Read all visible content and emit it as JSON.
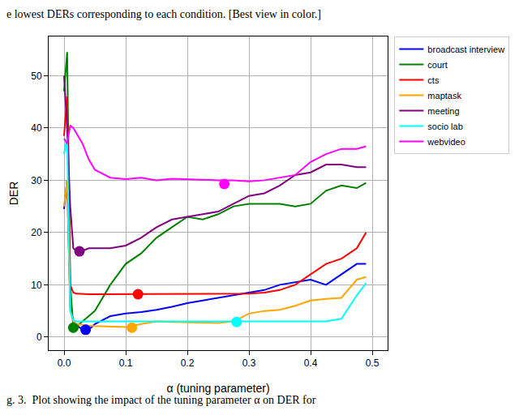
{
  "chart_data": {
    "type": "line",
    "x_label": "α (tuning parameter)",
    "y_label": "DER",
    "annotations": [
      "e lowest DERs corresponding to each condition. [Best view in color.]",
      "g. 3.  Plot showing the impact of the tuning parameter α on DER for"
    ],
    "xlim": [
      -0.025,
      0.525
    ],
    "ylim": [
      -2.5,
      57.5
    ],
    "xticks": [
      {
        "value": 0,
        "label": "0.0"
      },
      0.1,
      0.2,
      0.3,
      0.4,
      0.5
    ],
    "yticks": [
      0,
      10,
      20,
      30,
      40,
      50
    ],
    "grid": true,
    "legend": "upper right",
    "x": [
      0,
      0.005,
      0.01,
      0.015,
      0.02,
      0.03,
      0.04,
      0.05,
      0.075,
      0.1,
      0.125,
      0.15,
      0.175,
      0.2,
      0.225,
      0.25,
      0.275,
      0.3,
      0.325,
      0.35,
      0.375,
      0.4,
      0.425,
      0.45,
      0.475,
      0.49
    ],
    "series": [
      {
        "name": "broadcast interview",
        "color": "#0000ff",
        "values": [
          24.5,
          30,
          6,
          3,
          2.2,
          1.5,
          1.4,
          2.5,
          4,
          4.5,
          4.8,
          5.2,
          5.8,
          6.5,
          7,
          7.5,
          8,
          8.5,
          9,
          10,
          10.5,
          11,
          10,
          12,
          14,
          14
        ],
        "best": {
          "x": 0.035,
          "y": 1.4
        }
      },
      {
        "name": "court",
        "color": "#008000",
        "values": [
          47,
          54.5,
          10,
          2,
          2,
          3,
          4,
          5,
          10,
          14,
          16,
          19,
          21,
          23,
          22.5,
          23.5,
          25,
          25.5,
          25.5,
          25.5,
          25,
          25.5,
          28,
          29,
          28.5,
          29.5
        ],
        "best": {
          "x": 0.015,
          "y": 1.8
        }
      },
      {
        "name": "cts",
        "color": "#ff0000",
        "values": [
          38.5,
          46,
          10,
          8.5,
          8.3,
          8.2,
          8.2,
          8.2,
          8.2,
          8.2,
          8.2,
          8.2,
          8.2,
          8.2,
          8.2,
          8.2,
          8.2,
          8.3,
          8.5,
          9,
          10,
          12,
          14,
          15,
          17,
          20
        ],
        "best": {
          "x": 0.12,
          "y": 8.2
        }
      },
      {
        "name": "maptask",
        "color": "#ffa500",
        "values": [
          25,
          30,
          5,
          3,
          2.5,
          2.3,
          2.2,
          2.1,
          2,
          1.9,
          2.5,
          3,
          2.9,
          2.8,
          2.7,
          2.7,
          3,
          4.5,
          5,
          5.2,
          6,
          7,
          7.3,
          7.5,
          11,
          11.5
        ],
        "best": {
          "x": 0.11,
          "y": 1.8
        }
      },
      {
        "name": "meeting",
        "color": "#800080",
        "values": [
          50,
          40,
          25,
          17,
          16.5,
          16.5,
          17,
          17,
          17,
          17.5,
          19,
          21,
          22.5,
          23,
          23.5,
          24,
          25.5,
          27,
          27.5,
          29,
          31,
          31.5,
          33,
          33,
          32.5,
          32.5
        ],
        "best": {
          "x": 0.025,
          "y": 16.4
        }
      },
      {
        "name": "socio lab",
        "color": "#00ffff",
        "values": [
          35,
          38,
          5,
          3.2,
          3,
          3,
          3,
          3,
          3,
          3,
          3,
          3,
          3,
          3,
          3,
          3,
          3,
          3,
          3,
          3,
          3,
          3,
          3,
          3.5,
          8,
          10.3
        ],
        "best": {
          "x": 0.28,
          "y": 2.9
        }
      },
      {
        "name": "webvideo",
        "color": "#ff00ff",
        "values": [
          38,
          37,
          40.5,
          40,
          39,
          37,
          34,
          32,
          30.5,
          30.2,
          30.5,
          30,
          30.3,
          30.2,
          30,
          30,
          30,
          29.8,
          30,
          30.5,
          31,
          33.5,
          35,
          36,
          36,
          36.5
        ],
        "best": {
          "x": 0.26,
          "y": 29.3
        }
      }
    ]
  }
}
